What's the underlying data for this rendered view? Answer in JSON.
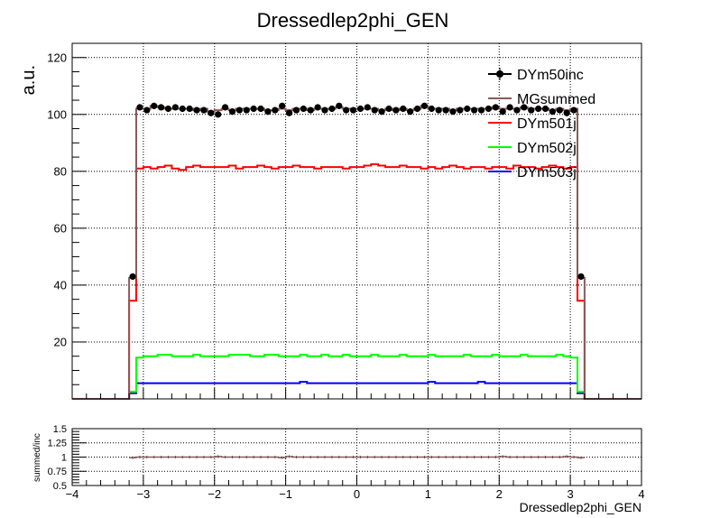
{
  "chart_data": [
    {
      "type": "line",
      "title": "Dressedlep2phi_GEN",
      "ylabel": "a.u.",
      "xlabel": "",
      "xlim": [
        -4,
        4
      ],
      "ylim": [
        0,
        125
      ],
      "x_ticks": [
        "−4",
        "−3",
        "−2",
        "−1",
        "0",
        "1",
        "2",
        "3",
        "4"
      ],
      "y_ticks": [
        "20",
        "40",
        "60",
        "80",
        "100",
        "120"
      ],
      "grid": true,
      "legend_position": "top-right",
      "bin_edges_range": [
        -3.2,
        3.2
      ],
      "bin_count": 64,
      "series": [
        {
          "name": "DYm50inc",
          "style": "points",
          "color": "#000000",
          "values": [
            43,
            102.5,
            101.5,
            103,
            102.5,
            102,
            102.5,
            102,
            102,
            101.5,
            101.5,
            100.5,
            100,
            102.5,
            101,
            101.5,
            101.5,
            102,
            102,
            101,
            101.5,
            103,
            100.5,
            101.5,
            102,
            101.5,
            102.5,
            101.5,
            102,
            103,
            101.5,
            101.5,
            102,
            102.5,
            101.5,
            101,
            102,
            101.5,
            102,
            101,
            102,
            103,
            102,
            101.5,
            101.5,
            101,
            101.5,
            102,
            101.5,
            101.5,
            102,
            102.5,
            101,
            102.5,
            101.5,
            102.5,
            101.5,
            102,
            102,
            101,
            101.5,
            100.5,
            101.5,
            43
          ]
        },
        {
          "name": "MGsummed",
          "style": "step",
          "color": "#8b5a5a",
          "values": [
            42.5,
            102,
            102,
            103,
            102.5,
            102,
            102,
            102,
            102,
            101.5,
            102,
            101,
            101.5,
            102,
            101.5,
            102,
            102,
            102,
            102,
            101.5,
            101.5,
            102,
            101.5,
            102,
            102,
            101.5,
            102,
            102,
            102,
            102.5,
            102,
            102,
            102,
            102,
            102,
            101.5,
            102,
            101.5,
            102,
            101.5,
            102,
            103,
            102,
            102,
            102,
            101.5,
            102,
            102,
            102,
            102,
            102,
            102.5,
            102,
            102,
            102,
            102.5,
            102,
            102,
            102,
            101.5,
            102,
            101.5,
            102,
            42.5
          ]
        },
        {
          "name": "DYm501j",
          "style": "step",
          "color": "#ff0000",
          "values": [
            34.5,
            81,
            81.5,
            81,
            81.5,
            82,
            81,
            80.5,
            81.5,
            82,
            81.5,
            81.5,
            81.5,
            81.5,
            82,
            81,
            81.5,
            81.5,
            82,
            81.5,
            81,
            81.5,
            81.5,
            82,
            81.5,
            81.5,
            81,
            81.5,
            81.5,
            81.5,
            81,
            81.5,
            81.5,
            82,
            82.5,
            82,
            81.5,
            81.5,
            82,
            81.5,
            81.5,
            81,
            81.5,
            81,
            81.5,
            82,
            81.5,
            81,
            81.5,
            81.5,
            81,
            81.5,
            81.5,
            81,
            82,
            81.5,
            81.5,
            81,
            81.5,
            82,
            81.5,
            81,
            81.5,
            34.5
          ]
        },
        {
          "name": "DYm502j",
          "style": "step",
          "color": "#00ff00",
          "values": [
            2.5,
            14.5,
            15,
            15,
            15.5,
            15.5,
            15,
            15,
            15,
            15.5,
            15,
            15,
            15,
            15,
            15.5,
            15.5,
            15.5,
            15,
            15,
            15.5,
            15.5,
            15,
            15,
            15,
            15.5,
            15,
            15,
            15.5,
            15,
            15,
            15.5,
            15,
            15,
            15,
            15.5,
            15,
            15,
            15,
            15.5,
            15,
            15,
            15,
            15.5,
            15,
            15,
            15,
            15,
            15.5,
            15,
            15,
            15,
            15.5,
            15,
            15,
            15,
            15.5,
            15,
            15,
            15,
            15,
            15.5,
            15,
            14.5,
            2.5
          ]
        },
        {
          "name": "DYm503j",
          "style": "step",
          "color": "#0000ff",
          "values": [
            2,
            5.5,
            5.5,
            5.5,
            5.5,
            5.5,
            5.5,
            5.5,
            5.5,
            5.5,
            5.5,
            5.5,
            5.5,
            5.5,
            5.5,
            5.5,
            5.5,
            5.5,
            5.5,
            5.5,
            5.5,
            5.5,
            5.5,
            5.5,
            6,
            5.5,
            5.5,
            5.5,
            5.5,
            5.5,
            5.5,
            5.5,
            5.5,
            5.5,
            5.5,
            5.5,
            5.5,
            5.5,
            5.5,
            5.5,
            5.5,
            5.5,
            6,
            5.5,
            5.5,
            5.5,
            5.5,
            5.5,
            5.5,
            6,
            5.5,
            5.5,
            5.5,
            5.5,
            5.5,
            5.5,
            5.5,
            5.5,
            5.5,
            5.5,
            5.5,
            5.5,
            5.5,
            2
          ]
        }
      ]
    },
    {
      "type": "line",
      "ylabel": "summed/inc",
      "xlabel": "Dressedlep2phi_GEN",
      "xlim": [
        -4,
        4
      ],
      "ylim": [
        0.5,
        1.5
      ],
      "x_ticks": [
        "−4",
        "−3",
        "−2",
        "−1",
        "0",
        "1",
        "2",
        "3",
        "4"
      ],
      "y_ticks": [
        "0.5",
        "0.75",
        "1",
        "1.25",
        "1.5"
      ],
      "grid": true,
      "series": [
        {
          "color": "#8b5a5a",
          "values": [
            0.99,
            1.0,
            1.0,
            1.0,
            1.0,
            1.0,
            1.0,
            1.0,
            1.0,
            1.0,
            1.0,
            1.0,
            1.01,
            1.0,
            1.0,
            1.0,
            1.0,
            1.0,
            1.0,
            1.0,
            1.0,
            0.99,
            1.01,
            1.0,
            1.0,
            1.0,
            1.0,
            1.0,
            1.0,
            1.0,
            1.0,
            1.0,
            1.0,
            1.0,
            1.0,
            1.0,
            1.0,
            1.0,
            1.0,
            1.0,
            1.0,
            1.0,
            1.0,
            1.0,
            1.0,
            1.0,
            1.0,
            1.0,
            1.0,
            1.0,
            1.0,
            1.0,
            1.01,
            1.0,
            1.0,
            1.0,
            1.0,
            1.0,
            1.0,
            1.0,
            1.0,
            1.01,
            1.0,
            0.99
          ]
        }
      ]
    }
  ]
}
